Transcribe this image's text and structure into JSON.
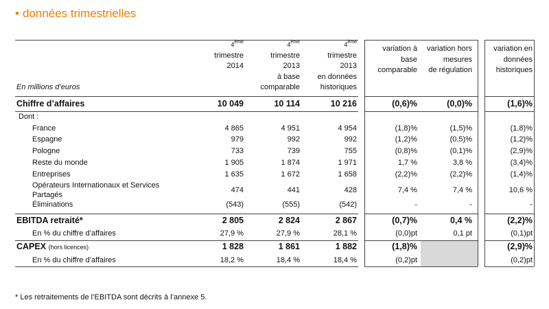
{
  "header": {
    "title": "données trimestrielles"
  },
  "table": {
    "unit_label": "En millions d’euros",
    "columns": [
      {
        "number": "4",
        "sup": "ème",
        "lines": [
          "trimestre",
          "2014"
        ]
      },
      {
        "number": "4",
        "sup": "ème",
        "lines": [
          "trimestre",
          "2013",
          "à base",
          "comparable"
        ]
      },
      {
        "number": "4",
        "sup": "ème",
        "lines": [
          "trimestre",
          "2013",
          "en données",
          "historiques"
        ]
      },
      {
        "lines": [
          "variation à",
          "base",
          "comparable"
        ]
      },
      {
        "lines": [
          "variation hors",
          "mesures",
          "de régulation"
        ]
      },
      {
        "lines": [
          "variation en",
          "données",
          "historiques"
        ]
      }
    ],
    "rows": [
      {
        "label": "Chiffre d’affaires",
        "cells": [
          "10 049",
          "10 114",
          "10 216",
          "(0,6)%",
          "(0,0)%",
          "(1,6)%"
        ]
      },
      {
        "label": "Dont :"
      },
      {
        "label": "France",
        "cells": [
          "4 865",
          "4 951",
          "4 954",
          "(1,8)%",
          "(1,5)%",
          "(1,8)%"
        ]
      },
      {
        "label": "Espagne",
        "cells": [
          "979",
          "992",
          "992",
          "(1,2)%",
          "(0,5)%",
          "(1,2)%"
        ]
      },
      {
        "label": "Pologne",
        "cells": [
          "733",
          "739",
          "755",
          "(0,8)%",
          "(0,1)%",
          "(2,9)%"
        ]
      },
      {
        "label": "Reste du monde",
        "cells": [
          "1 905",
          "1 874",
          "1 971",
          "1,7 %",
          "3,8 %",
          "(3,4)%"
        ]
      },
      {
        "label": "Entreprises",
        "cells": [
          "1 635",
          "1 672",
          "1 658",
          "(2,2)%",
          "(2,2)%",
          "(1,4)%"
        ]
      },
      {
        "label": "Opérateurs Internationaux et Services Partagés",
        "cells": [
          "474",
          "441",
          "428",
          "7,4 %",
          "7,4 %",
          "10,6 %"
        ]
      },
      {
        "label": "Éliminations",
        "cells": [
          "(543)",
          "(555)",
          "(542)",
          "-",
          "-",
          "-"
        ]
      },
      {
        "label": "EBITDA retraité*",
        "cells": [
          "2 805",
          "2 824",
          "2 867",
          "(0,7)%",
          "0,4 %",
          "(2,2)%"
        ]
      },
      {
        "label": "En % du chiffre d’affaires",
        "cells": [
          "27,9 %",
          "27,9 %",
          "28,1 %",
          "(0,0)pt",
          "0,1 pt",
          "(0,1)pt"
        ]
      },
      {
        "label": "CAPEX",
        "label_note": "(hors licences)",
        "cells": [
          "1 828",
          "1 861",
          "1 882",
          "(1,8)%",
          null,
          "(2,9)%"
        ]
      },
      {
        "label": "En % du chiffre d’affaires",
        "cells": [
          "18,2 %",
          "18,4 %",
          "18,4 %",
          "(0,2)pt",
          null,
          "(0,2)pt"
        ]
      }
    ]
  },
  "footnote": "* Les retraitements de l’EBITDA sont décrits à l’annexe 5."
}
